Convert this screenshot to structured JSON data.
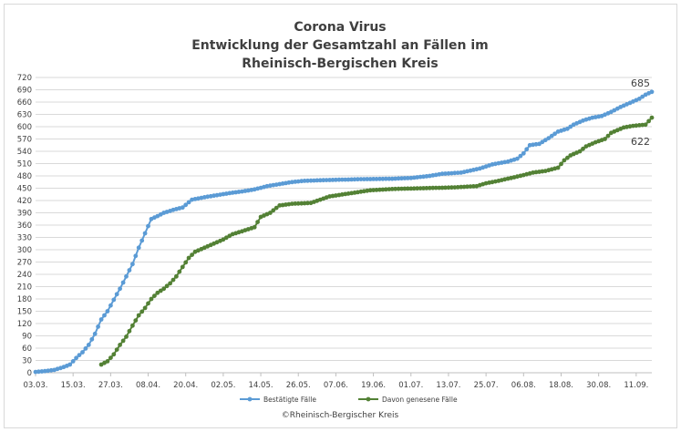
{
  "chart_data": {
    "type": "line",
    "title_lines": [
      "Corona Virus",
      "Entwicklung der Gesamtzahl an Fällen im",
      "Rheinisch-Bergischen Kreis"
    ],
    "xlabel": "",
    "ylabel": "",
    "ylim": [
      0,
      720
    ],
    "ytick_step": 30,
    "x_range": [
      "2020-03-03",
      "2020-09-16"
    ],
    "x_ticks": [
      {
        "date": "2020-03-03",
        "label": "03.03."
      },
      {
        "date": "2020-03-15",
        "label": "15.03."
      },
      {
        "date": "2020-03-27",
        "label": "27.03."
      },
      {
        "date": "2020-04-08",
        "label": "08.04."
      },
      {
        "date": "2020-04-20",
        "label": "20.04."
      },
      {
        "date": "2020-05-02",
        "label": "02.05."
      },
      {
        "date": "2020-05-14",
        "label": "14.05."
      },
      {
        "date": "2020-05-26",
        "label": "26.05."
      },
      {
        "date": "2020-06-07",
        "label": "07.06."
      },
      {
        "date": "2020-06-19",
        "label": "19.06."
      },
      {
        "date": "2020-07-01",
        "label": "01.07."
      },
      {
        "date": "2020-07-13",
        "label": "13.07."
      },
      {
        "date": "2020-07-25",
        "label": "25.07."
      },
      {
        "date": "2020-08-06",
        "label": "06.08."
      },
      {
        "date": "2020-08-18",
        "label": "18.08."
      },
      {
        "date": "2020-08-30",
        "label": "30.08."
      },
      {
        "date": "2020-09-11",
        "label": "11.09."
      }
    ],
    "grid": "horizontal",
    "legend_position": "bottom",
    "series": [
      {
        "name": "Bestätigte Fälle",
        "color": "#5b9bd5",
        "points": [
          [
            "2020-03-03",
            2
          ],
          [
            "2020-03-06",
            4
          ],
          [
            "2020-03-09",
            7
          ],
          [
            "2020-03-12",
            14
          ],
          [
            "2020-03-14",
            20
          ],
          [
            "2020-03-16",
            36
          ],
          [
            "2020-03-18",
            50
          ],
          [
            "2020-03-20",
            68
          ],
          [
            "2020-03-22",
            95
          ],
          [
            "2020-03-24",
            130
          ],
          [
            "2020-03-26",
            150
          ],
          [
            "2020-03-28",
            178
          ],
          [
            "2020-03-30",
            205
          ],
          [
            "2020-04-01",
            235
          ],
          [
            "2020-04-03",
            265
          ],
          [
            "2020-04-05",
            305
          ],
          [
            "2020-04-07",
            340
          ],
          [
            "2020-04-09",
            375
          ],
          [
            "2020-04-11",
            382
          ],
          [
            "2020-04-13",
            390
          ],
          [
            "2020-04-16",
            397
          ],
          [
            "2020-04-19",
            403
          ],
          [
            "2020-04-22",
            422
          ],
          [
            "2020-04-26",
            428
          ],
          [
            "2020-04-30",
            433
          ],
          [
            "2020-05-04",
            438
          ],
          [
            "2020-05-08",
            442
          ],
          [
            "2020-05-12",
            447
          ],
          [
            "2020-05-16",
            455
          ],
          [
            "2020-05-20",
            460
          ],
          [
            "2020-05-24",
            465
          ],
          [
            "2020-05-28",
            468
          ],
          [
            "2020-06-05",
            470
          ],
          [
            "2020-06-15",
            472
          ],
          [
            "2020-06-25",
            473
          ],
          [
            "2020-07-01",
            475
          ],
          [
            "2020-07-07",
            480
          ],
          [
            "2020-07-11",
            485
          ],
          [
            "2020-07-17",
            488
          ],
          [
            "2020-07-23",
            498
          ],
          [
            "2020-07-27",
            508
          ],
          [
            "2020-08-01",
            515
          ],
          [
            "2020-08-04",
            522
          ],
          [
            "2020-08-06",
            535
          ],
          [
            "2020-08-08",
            555
          ],
          [
            "2020-08-11",
            558
          ],
          [
            "2020-08-14",
            572
          ],
          [
            "2020-08-17",
            588
          ],
          [
            "2020-08-20",
            595
          ],
          [
            "2020-08-22",
            605
          ],
          [
            "2020-08-25",
            615
          ],
          [
            "2020-08-28",
            622
          ],
          [
            "2020-08-31",
            626
          ],
          [
            "2020-09-03",
            636
          ],
          [
            "2020-09-06",
            648
          ],
          [
            "2020-09-09",
            658
          ],
          [
            "2020-09-12",
            668
          ],
          [
            "2020-09-14",
            678
          ],
          [
            "2020-09-16",
            685
          ]
        ],
        "end_label": "685"
      },
      {
        "name": "Davon genesene Fälle",
        "color": "#538135",
        "points": [
          [
            "2020-03-24",
            20
          ],
          [
            "2020-03-26",
            28
          ],
          [
            "2020-03-28",
            45
          ],
          [
            "2020-03-30",
            68
          ],
          [
            "2020-04-01",
            88
          ],
          [
            "2020-04-03",
            115
          ],
          [
            "2020-04-05",
            140
          ],
          [
            "2020-04-07",
            158
          ],
          [
            "2020-04-09",
            180
          ],
          [
            "2020-04-11",
            195
          ],
          [
            "2020-04-13",
            205
          ],
          [
            "2020-04-15",
            218
          ],
          [
            "2020-04-17",
            235
          ],
          [
            "2020-04-19",
            258
          ],
          [
            "2020-04-21",
            280
          ],
          [
            "2020-04-23",
            295
          ],
          [
            "2020-04-26",
            305
          ],
          [
            "2020-04-29",
            315
          ],
          [
            "2020-05-02",
            325
          ],
          [
            "2020-05-05",
            338
          ],
          [
            "2020-05-08",
            345
          ],
          [
            "2020-05-12",
            355
          ],
          [
            "2020-05-14",
            380
          ],
          [
            "2020-05-17",
            390
          ],
          [
            "2020-05-20",
            408
          ],
          [
            "2020-05-24",
            412
          ],
          [
            "2020-05-30",
            414
          ],
          [
            "2020-06-02",
            422
          ],
          [
            "2020-06-05",
            430
          ],
          [
            "2020-06-12",
            438
          ],
          [
            "2020-06-18",
            445
          ],
          [
            "2020-06-25",
            448
          ],
          [
            "2020-07-05",
            450
          ],
          [
            "2020-07-15",
            452
          ],
          [
            "2020-07-22",
            455
          ],
          [
            "2020-07-25",
            462
          ],
          [
            "2020-07-29",
            468
          ],
          [
            "2020-08-02",
            475
          ],
          [
            "2020-08-06",
            482
          ],
          [
            "2020-08-09",
            488
          ],
          [
            "2020-08-13",
            492
          ],
          [
            "2020-08-17",
            500
          ],
          [
            "2020-08-19",
            518
          ],
          [
            "2020-08-21",
            530
          ],
          [
            "2020-08-24",
            540
          ],
          [
            "2020-08-26",
            552
          ],
          [
            "2020-08-29",
            562
          ],
          [
            "2020-09-01",
            570
          ],
          [
            "2020-09-03",
            585
          ],
          [
            "2020-09-07",
            598
          ],
          [
            "2020-09-10",
            602
          ],
          [
            "2020-09-14",
            605
          ],
          [
            "2020-09-16",
            622
          ]
        ],
        "end_label": "622"
      }
    ],
    "credit": "©Rheinisch-Bergischer Kreis"
  }
}
